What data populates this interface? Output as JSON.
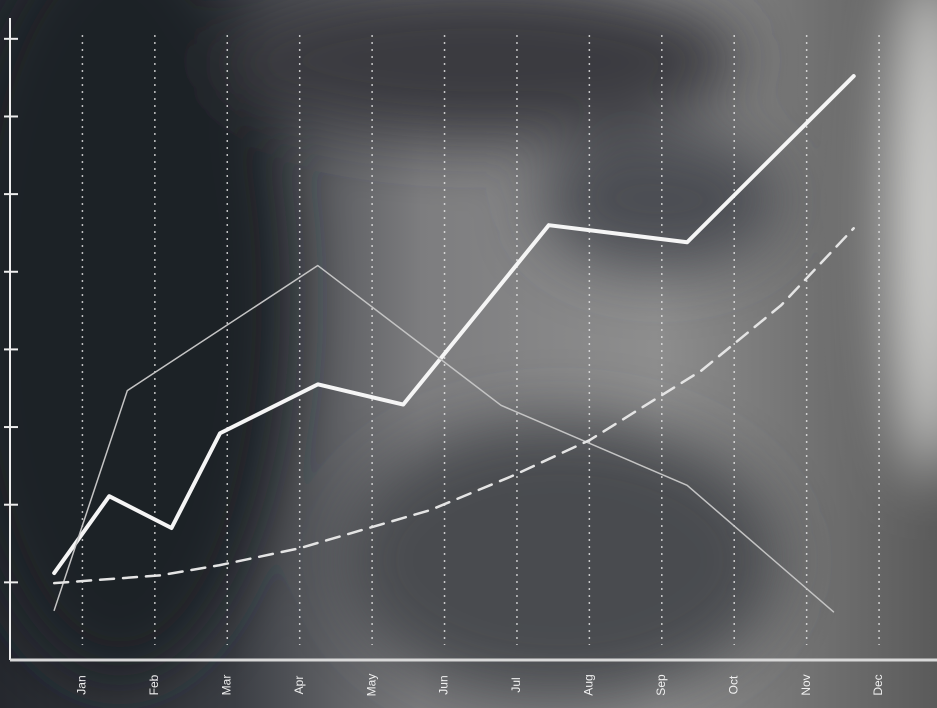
{
  "chart_data": {
    "type": "line",
    "categories": [
      "Jan",
      "Feb",
      "Mar",
      "Apr",
      "May",
      "Jun",
      "Jul",
      "Aug",
      "Sep",
      "Oct",
      "Nov",
      "Dec"
    ],
    "xlim": [
      -1,
      11.8
    ],
    "ylim": [
      0,
      8.5
    ],
    "yticks": [
      1,
      2,
      3,
      4,
      5,
      6,
      7,
      8
    ],
    "grid": true,
    "series": [
      {
        "color": "#f5f5f5",
        "style": "solid",
        "width": 4,
        "x": [
          -0.39,
          0.37,
          1.23,
          1.9,
          3.25,
          4.43,
          6.44,
          8.35,
          10.65
        ],
        "values": [
          1.12,
          2.11,
          1.7,
          2.92,
          3.55,
          3.29,
          5.6,
          5.38,
          7.52
        ]
      },
      {
        "color": "#c4c4c4",
        "style": "solid",
        "width": 1.5,
        "x": [
          -0.39,
          0.62,
          3.25,
          5.78,
          8.35,
          10.37
        ],
        "values": [
          0.64,
          3.47,
          5.08,
          3.28,
          2.25,
          0.62
        ]
      },
      {
        "color": "#e4e4e4",
        "style": "dashed",
        "width": 2.5,
        "x": [
          -0.39,
          1.07,
          1.89,
          3.0,
          4.8,
          5.91,
          7.0,
          8.55,
          9.65,
          10.65
        ],
        "values": [
          0.99,
          1.09,
          1.22,
          1.44,
          1.93,
          2.36,
          2.83,
          3.73,
          4.57,
          5.56
        ]
      }
    ]
  }
}
